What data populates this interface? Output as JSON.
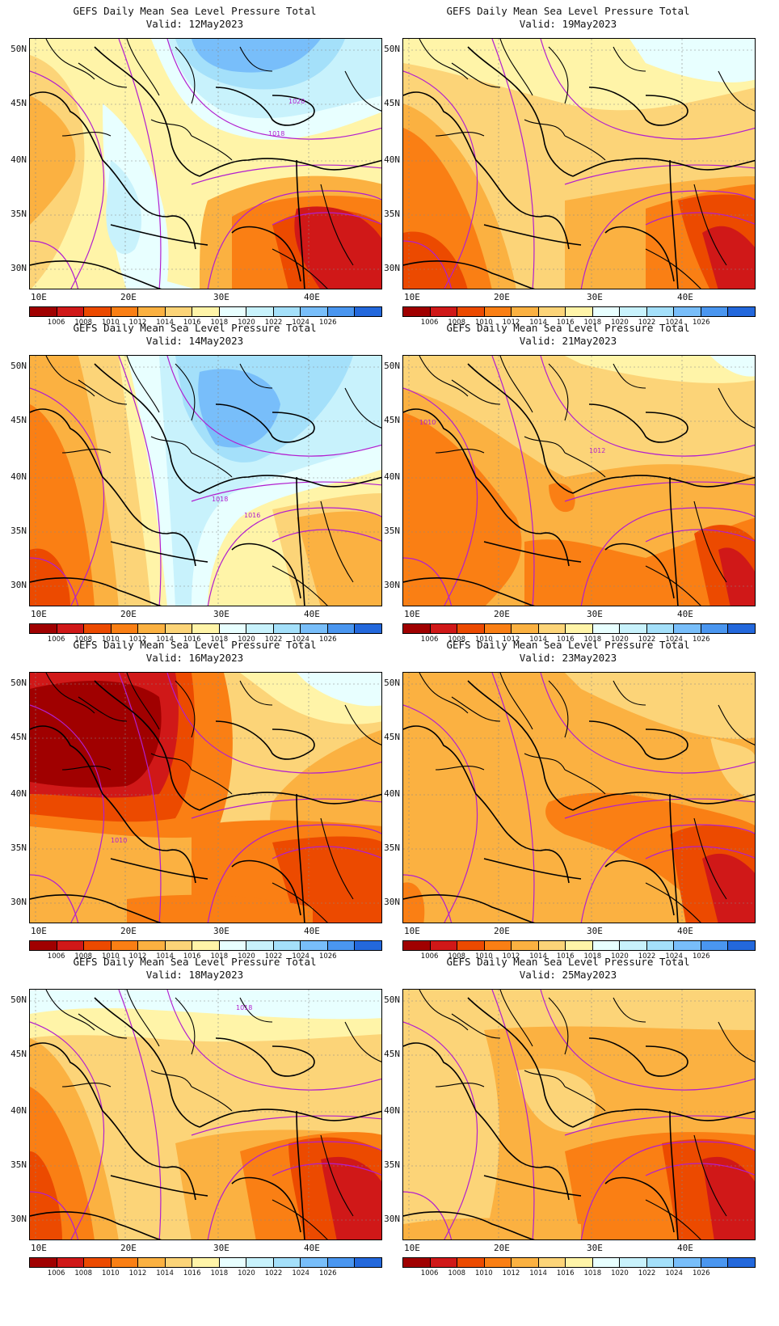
{
  "panels": [
    {
      "title": "GEFS Daily Mean Sea Level Pressure Total",
      "valid": "Valid: 12May2023",
      "theme": "high",
      "contour_labels": [
        {
          "text": "1020"
        },
        {
          "text": "1018"
        }
      ]
    },
    {
      "title": "GEFS Daily Mean Sea Level Pressure Total",
      "valid": "Valid: 19May2023",
      "theme": "warm",
      "contour_labels": []
    },
    {
      "title": "GEFS Daily Mean Sea Level Pressure Total",
      "valid": "Valid: 14May2023",
      "theme": "high2",
      "contour_labels": [
        {
          "text": "1018"
        },
        {
          "text": "1016"
        }
      ]
    },
    {
      "title": "GEFS Daily Mean Sea Level Pressure Total",
      "valid": "Valid: 21May2023",
      "theme": "low",
      "contour_labels": [
        {
          "text": "1010"
        },
        {
          "text": "1012"
        }
      ]
    },
    {
      "title": "GEFS Daily Mean Sea Level Pressure Total",
      "valid": "Valid: 16May2023",
      "theme": "verylow",
      "contour_labels": [
        {
          "text": "1010"
        }
      ]
    },
    {
      "title": "GEFS Daily Mean Sea Level Pressure Total",
      "valid": "Valid: 23May2023",
      "theme": "mid",
      "contour_labels": []
    },
    {
      "title": "GEFS Daily Mean Sea Level Pressure Total",
      "valid": "Valid: 18May2023",
      "theme": "mild",
      "contour_labels": [
        {
          "text": "1018"
        }
      ]
    },
    {
      "title": "GEFS Daily Mean Sea Level Pressure Total",
      "valid": "Valid: 25May2023",
      "theme": "mid2",
      "contour_labels": []
    }
  ],
  "lat_labels": [
    "50N",
    "45N",
    "40N",
    "35N",
    "30N"
  ],
  "lon_labels": [
    "10E",
    "20E",
    "30E",
    "40E"
  ],
  "colorbar": {
    "colors": [
      "#a00000",
      "#d01818",
      "#ec4a00",
      "#fa7f14",
      "#fbb141",
      "#fcd478",
      "#fff4a8",
      "#e8ffff",
      "#c8f2fc",
      "#a4e0fa",
      "#78befa",
      "#4a96f0",
      "#2368dc"
    ],
    "labels": [
      "1006",
      "1008",
      "1010",
      "1012",
      "1014",
      "1016",
      "1018",
      "1020",
      "1022",
      "1024",
      "1026"
    ]
  },
  "contour_color": "#b21ecf"
}
